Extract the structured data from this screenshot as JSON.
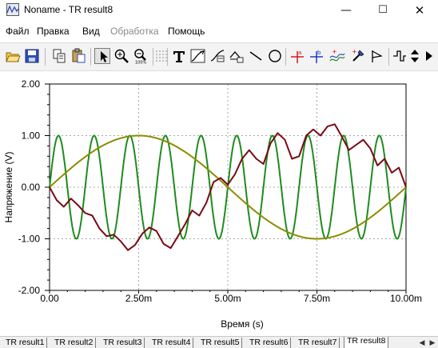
{
  "window": {
    "title": "Noname - TR result8",
    "controls": {
      "minimize": "—",
      "maximize": "☐",
      "close": "✕"
    }
  },
  "menu": [
    {
      "label": "Файл",
      "enabled": true
    },
    {
      "label": "Правка",
      "enabled": true
    },
    {
      "label": "Вид",
      "enabled": true
    },
    {
      "label": "Обработка",
      "enabled": false
    },
    {
      "label": "Помощь",
      "enabled": true
    }
  ],
  "toolbar": {
    "buttons": [
      "open-file-icon",
      "save-icon",
      "copy-icon",
      "paste-icon",
      "pointer-icon",
      "zoom-in-icon",
      "zoom-out-icon",
      "grid-icon",
      "text-icon",
      "curve-icon",
      "curve-label-icon",
      "axis-icon",
      "line-icon",
      "circle-icon",
      "cursor-a-icon",
      "cursor-b-icon",
      "cursor-curves-icon",
      "probe-icon",
      "flag-icon",
      "step-icon"
    ],
    "active": "pointer-icon"
  },
  "chart_data": {
    "type": "line",
    "xlabel": "Время (s)",
    "ylabel": "Напряжение (V)",
    "xlim": [
      0,
      10
    ],
    "ylim": [
      -2,
      2
    ],
    "x_ticks": [
      "0.00",
      "2.50m",
      "5.00m",
      "7.50m",
      "10.00m"
    ],
    "x_tick_values": [
      0,
      2.5,
      5,
      7.5,
      10
    ],
    "y_ticks": [
      "2.00",
      "1.00",
      "0.00",
      "-1.00",
      "-2.00"
    ],
    "y_tick_values": [
      2,
      1,
      0,
      -1,
      -2
    ],
    "grid": true,
    "series": [
      {
        "color": "#1e8c1e",
        "amplitude": 1.0,
        "cycles": 10
      },
      {
        "color": "#8c8c00",
        "amplitude": 1.0,
        "cycles": 1
      },
      {
        "color": "#7a0a14",
        "x": [
          0,
          0.2,
          0.4,
          0.6,
          0.8,
          1.0,
          1.2,
          1.4,
          1.6,
          1.8,
          2.0,
          2.2,
          2.4,
          2.6,
          2.8,
          3.0,
          3.2,
          3.4,
          3.6,
          3.8,
          4.0,
          4.2,
          4.4,
          4.6,
          4.8,
          5.0,
          5.2,
          5.4,
          5.6,
          5.8,
          6.0,
          6.2,
          6.4,
          6.6,
          6.8,
          7.0,
          7.2,
          7.4,
          7.6,
          7.8,
          8.0,
          8.2,
          8.4,
          8.6,
          8.8,
          9.0,
          9.2,
          9.4,
          9.6,
          9.8,
          10.0
        ],
        "y": [
          0.0,
          -0.25,
          -0.38,
          -0.22,
          -0.35,
          -0.5,
          -0.55,
          -0.8,
          -0.95,
          -0.92,
          -1.05,
          -1.22,
          -1.12,
          -0.9,
          -0.78,
          -0.85,
          -1.1,
          -1.18,
          -0.95,
          -0.72,
          -0.45,
          -0.55,
          -0.3,
          0.1,
          0.18,
          0.05,
          0.25,
          0.55,
          0.72,
          0.55,
          0.45,
          0.85,
          1.05,
          0.92,
          0.55,
          0.6,
          1.0,
          1.12,
          1.0,
          1.18,
          1.22,
          0.98,
          0.72,
          0.82,
          0.92,
          0.75,
          0.42,
          0.55,
          0.28,
          0.38,
          0.0
        ]
      }
    ]
  },
  "tabs": {
    "items": [
      "TR result1",
      "TR result2",
      "TR result3",
      "TR result4",
      "TR result5",
      "TR result6",
      "TR result7",
      "TR result8"
    ],
    "selected": 7
  }
}
